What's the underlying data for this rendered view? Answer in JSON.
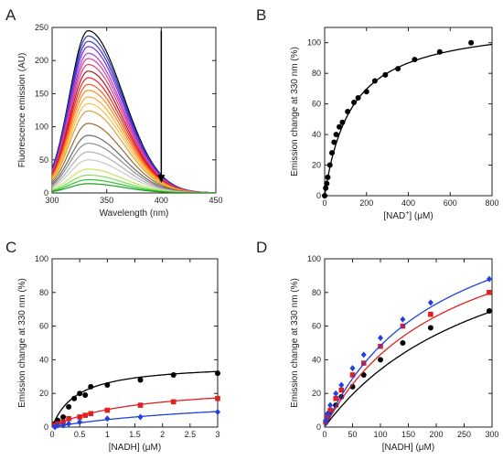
{
  "chart_data": [
    {
      "panel": "A",
      "type": "line",
      "xlabel": "Wavelength (nm)",
      "ylabel": "Fluorescence emission (AU)",
      "xlim": [
        300,
        450
      ],
      "ylim": [
        0,
        250
      ],
      "xticks": [
        300,
        350,
        400,
        450
      ],
      "yticks": [
        0,
        50,
        100,
        150,
        200,
        250
      ],
      "peak_wavelength": 333,
      "arrow": {
        "x": 400,
        "y_from": 245,
        "y_to": 15
      },
      "series": [
        {
          "peak": 245,
          "color": "#000000"
        },
        {
          "peak": 237,
          "color": "#1f3fbf"
        },
        {
          "peak": 229,
          "color": "#4b2fd0"
        },
        {
          "peak": 221,
          "color": "#7a2fd6"
        },
        {
          "peak": 211,
          "color": "#b03ad2"
        },
        {
          "peak": 203,
          "color": "#d43fa0"
        },
        {
          "peak": 194,
          "color": "#e0407a"
        },
        {
          "peak": 184,
          "color": "#b0171f"
        },
        {
          "peak": 174,
          "color": "#ff2020"
        },
        {
          "peak": 164,
          "color": "#ff5a1e"
        },
        {
          "peak": 155,
          "color": "#ff8a1e"
        },
        {
          "peak": 145,
          "color": "#ffaa30"
        },
        {
          "peak": 135,
          "color": "#f2c24a"
        },
        {
          "peak": 124,
          "color": "#d9a23f"
        },
        {
          "peak": 105,
          "color": "#9b6a33"
        },
        {
          "peak": 87,
          "color": "#6b6b6b"
        },
        {
          "peak": 75,
          "color": "#8f8f8f"
        },
        {
          "peak": 62,
          "color": "#b0b0b0"
        },
        {
          "peak": 50,
          "color": "#c9c9c9"
        },
        {
          "peak": 36,
          "color": "#c8e65a"
        },
        {
          "peak": 27,
          "color": "#7de05a"
        },
        {
          "peak": 20,
          "color": "#2ec23a"
        },
        {
          "peak": 14,
          "color": "#1aa01a"
        }
      ]
    },
    {
      "panel": "B",
      "type": "scatter",
      "xlabel_main": "[NAD",
      "xlabel_sup": "+",
      "xlabel_tail": "] (μM)",
      "ylabel": "Emission change at 330 nm (%)",
      "xlim": [
        0,
        800
      ],
      "ylim": [
        0,
        110
      ],
      "xticks": [
        0,
        200,
        400,
        600,
        800
      ],
      "yticks": [
        0,
        20,
        40,
        60,
        80,
        100
      ],
      "series": [
        {
          "color": "#000000",
          "marker": "circle",
          "x": [
            0,
            5,
            10,
            15,
            25,
            35,
            45,
            55,
            70,
            85,
            110,
            140,
            160,
            200,
            240,
            290,
            350,
            430,
            550,
            700
          ],
          "y": [
            0,
            5,
            8,
            12,
            20,
            28,
            35,
            40,
            45,
            48,
            55,
            61,
            64,
            68,
            75,
            79,
            83,
            89,
            94,
            100
          ],
          "fit": {
            "kind": "hyperbola",
            "vmax": 115,
            "k": 130
          }
        }
      ]
    },
    {
      "panel": "C",
      "type": "scatter",
      "xlabel": "[NADH] (μM)",
      "ylabel": "Emission change at 330 nm (%)",
      "xlim": [
        0,
        3
      ],
      "ylim": [
        0,
        100
      ],
      "xticks": [
        0,
        0.5,
        1,
        1.5,
        2,
        2.5,
        3
      ],
      "xtick_labels": [
        "0",
        "0.5",
        "1",
        "1.5",
        "2",
        "2.5",
        "3"
      ],
      "yticks": [
        0,
        20,
        40,
        60,
        80,
        100
      ],
      "series": [
        {
          "color": "#000000",
          "marker": "circle",
          "x": [
            0.05,
            0.1,
            0.2,
            0.3,
            0.4,
            0.5,
            0.6,
            0.7,
            1.0,
            1.6,
            2.2,
            3.0
          ],
          "y": [
            2,
            4,
            6,
            12,
            17,
            20,
            19,
            24,
            25,
            28,
            31,
            32
          ],
          "fit": {
            "kind": "hyperbola",
            "vmax": 38,
            "k": 0.45
          }
        },
        {
          "color": "#e02020",
          "marker": "square",
          "x": [
            0.05,
            0.1,
            0.2,
            0.3,
            0.5,
            0.6,
            0.7,
            1.0,
            1.6,
            2.2,
            3.0
          ],
          "y": [
            1,
            2,
            3,
            5,
            6,
            7,
            8,
            10,
            13,
            15,
            17
          ],
          "fit": {
            "kind": "hyperbola",
            "vmax": 26,
            "k": 1.5
          }
        },
        {
          "color": "#2040e0",
          "marker": "diamond",
          "x": [
            0.05,
            0.1,
            0.2,
            0.3,
            0.5,
            1.0,
            1.6,
            3.0
          ],
          "y": [
            0,
            1,
            1,
            2,
            3,
            5,
            6,
            9
          ],
          "fit": {
            "kind": "hyperbola",
            "vmax": 20,
            "k": 3.5
          }
        }
      ]
    },
    {
      "panel": "D",
      "type": "scatter",
      "xlabel": "[NADH] (μM)",
      "ylabel": "Emission change at 330 nm (%)",
      "xlim": [
        0,
        300
      ],
      "ylim": [
        0,
        100
      ],
      "xticks": [
        0,
        50,
        100,
        150,
        200,
        250,
        300
      ],
      "yticks": [
        0,
        20,
        40,
        60,
        80,
        100
      ],
      "series": [
        {
          "color": "#000000",
          "marker": "circle",
          "x": [
            2,
            5,
            10,
            20,
            30,
            50,
            70,
            100,
            140,
            190,
            295
          ],
          "y": [
            3,
            5,
            9,
            13,
            18,
            24,
            31,
            40,
            50,
            59,
            69
          ],
          "fit": {
            "kind": "hyperbola",
            "vmax": 140,
            "k": 310
          }
        },
        {
          "color": "#e02020",
          "marker": "square",
          "x": [
            2,
            5,
            10,
            20,
            30,
            50,
            70,
            100,
            140,
            190,
            295
          ],
          "y": [
            3,
            6,
            10,
            17,
            22,
            31,
            38,
            48,
            60,
            67,
            80
          ],
          "fit": {
            "kind": "hyperbola",
            "vmax": 140,
            "k": 225
          }
        },
        {
          "color": "#2040e0",
          "marker": "diamond",
          "x": [
            2,
            5,
            10,
            20,
            30,
            50,
            70,
            100,
            140,
            190,
            295
          ],
          "y": [
            4,
            8,
            13,
            20,
            25,
            35,
            43,
            53,
            64,
            74,
            88
          ],
          "fit": {
            "kind": "hyperbola",
            "vmax": 150,
            "k": 210
          }
        }
      ]
    }
  ]
}
